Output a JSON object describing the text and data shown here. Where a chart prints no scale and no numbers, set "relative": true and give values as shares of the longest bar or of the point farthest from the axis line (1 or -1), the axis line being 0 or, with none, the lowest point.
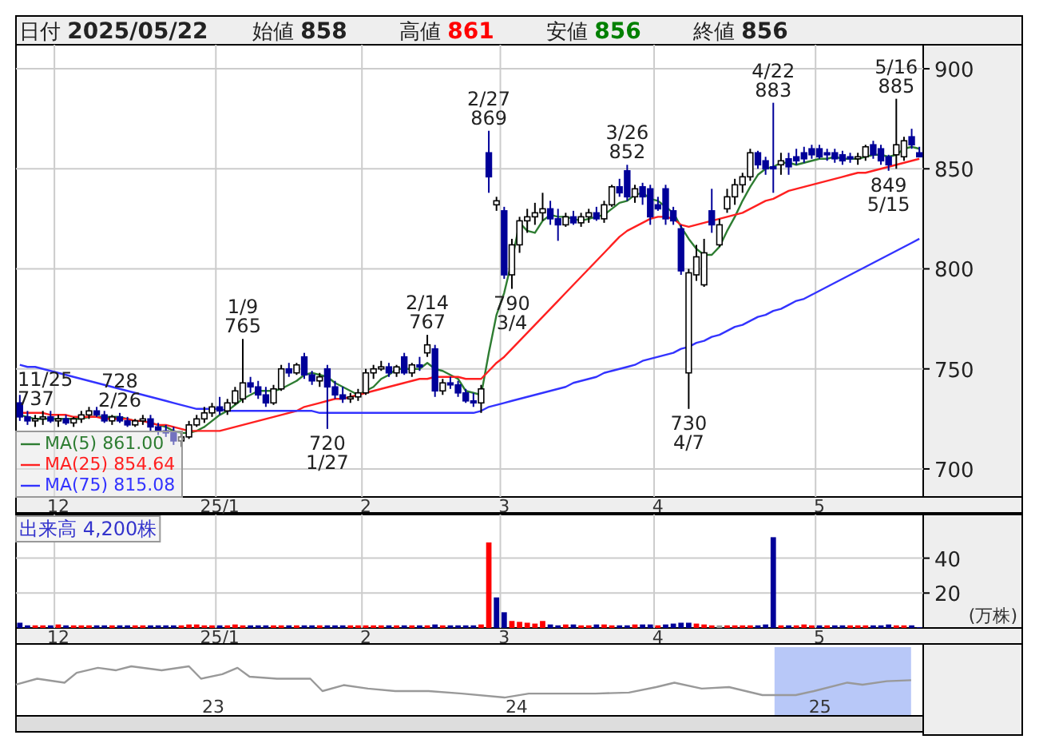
{
  "chart_data": [
    {
      "type": "other",
      "annotations": [
        "日付 2025/05/22",
        "始値 858",
        "高値 861",
        "安値 856",
        "終値 856"
      ],
      "colors": [
        "#222222",
        "#222222",
        "#ff0000",
        "#008000",
        "#222222"
      ]
    },
    {
      "type": "candlestick",
      "colors": [
        "#000099",
        "#000099",
        "#ffffff",
        "#ffffff",
        "#000099",
        "#ffffff",
        "#000099",
        "#ffffff",
        "#ffffff",
        "#ffffff",
        "#000099",
        "#000099",
        "#ffffff",
        "#000099",
        "#000099",
        "#ffffff",
        "#ffffff",
        "#000099",
        "#000099",
        "#000099",
        "#000099",
        "#ffffff",
        "#ffffff",
        "#ffffff",
        "#ffffff",
        "#ffffff",
        "#000099",
        "#ffffff",
        "#ffffff",
        "#ffffff",
        "#000099",
        "#000099",
        "#000099",
        "#ffffff",
        "#ffffff",
        "#000099",
        "#ffffff",
        "#000099",
        "#000099",
        "#ffffff",
        "#000099",
        "#000099",
        "#000099",
        "#ffffff",
        "#ffffff",
        "#ffffff",
        "#ffffff",
        "#ffffff",
        "#000099",
        "#ffffff",
        "#000099",
        "#ffffff",
        "#000099",
        "#ffffff",
        "#000099",
        "#ffffff",
        "#000099",
        "#000099",
        "#000099",
        "#000099",
        "#ffffff",
        "#000099",
        "#ffffff",
        "#000099",
        "#ffffff",
        "#ffffff",
        "#ffffff",
        "#ffffff",
        "#ffffff",
        "#000099",
        "#000099",
        "#ffffff",
        "#000099",
        "#ffffff",
        "#ffffff",
        "#000099",
        "#ffffff",
        "#ffffff",
        "#000099",
        "#000099",
        "#ffffff",
        "#000099",
        "#000099",
        "#000099",
        "#000099",
        "#000099",
        "#000099",
        "#ffffff",
        "#ffffff",
        "#ffffff",
        "#000099",
        "#ffffff",
        "#ffffff",
        "#ffffff",
        "#ffffff",
        "#ffffff",
        "#000099",
        "#000099",
        "#000099",
        "#ffffff",
        "#000099",
        "#000099",
        "#000099",
        "#000099",
        "#000099",
        "#000099",
        "#000099",
        "#000099",
        "#000099",
        "#ffffff",
        "#ffffff",
        "#000099",
        "#000099",
        "#000099",
        "#ffffff",
        "#ffffff",
        "#000099",
        "#000099"
      ],
      "ylim": [
        686,
        912
      ],
      "yticks": [
        700,
        750,
        800,
        850,
        900
      ],
      "grid": true,
      "legend": "bottom left",
      "categories": [
        null,
        null,
        null,
        null,
        null,
        "12",
        null,
        null,
        null,
        null,
        null,
        null,
        null,
        null,
        null,
        null,
        null,
        null,
        null,
        null,
        null,
        null,
        null,
        null,
        null,
        null,
        "25/1",
        null,
        null,
        null,
        null,
        null,
        null,
        null,
        null,
        null,
        null,
        null,
        null,
        null,
        null,
        null,
        null,
        null,
        null,
        "2",
        null,
        null,
        null,
        null,
        null,
        null,
        null,
        null,
        null,
        null,
        null,
        null,
        null,
        null,
        null,
        null,
        null,
        "3",
        null,
        null,
        null,
        null,
        null,
        null,
        null,
        null,
        null,
        null,
        null,
        null,
        null,
        null,
        null,
        null,
        null,
        null,
        null,
        "4",
        null,
        null,
        null,
        null,
        null,
        null,
        null,
        null,
        null,
        null,
        null,
        null,
        null,
        null,
        null,
        null,
        null,
        null,
        null,
        null,
        "5",
        null,
        null,
        null,
        null,
        null,
        null,
        null,
        null,
        null,
        null,
        null,
        null,
        null
      ],
      "ohlc": [
        [
          733,
          737,
          724,
          726
        ],
        [
          726,
          729,
          722,
          724
        ],
        [
          724,
          727,
          721,
          725
        ],
        [
          725,
          729,
          722,
          726
        ],
        [
          726,
          729,
          723,
          724
        ],
        [
          724,
          727,
          721,
          725
        ],
        [
          725,
          727,
          722,
          723
        ],
        [
          723,
          726,
          721,
          725
        ],
        [
          725,
          729,
          723,
          727
        ],
        [
          727,
          731,
          725,
          729
        ],
        [
          729,
          731,
          726,
          727
        ],
        [
          727,
          729,
          723,
          724
        ],
        [
          724,
          727,
          722,
          726
        ],
        [
          726,
          728,
          723,
          724
        ],
        [
          724,
          726,
          721,
          722
        ],
        [
          722,
          725,
          721,
          724
        ],
        [
          724,
          727,
          722,
          725
        ],
        [
          725,
          727,
          719,
          721
        ],
        [
          721,
          723,
          717,
          719
        ],
        [
          719,
          722,
          716,
          718
        ],
        [
          718,
          721,
          712,
          714
        ],
        [
          714,
          718,
          711,
          716
        ],
        [
          716,
          724,
          715,
          722
        ],
        [
          722,
          727,
          721,
          725
        ],
        [
          725,
          731,
          723,
          728
        ],
        [
          728,
          733,
          726,
          731
        ],
        [
          731,
          736,
          727,
          729
        ],
        [
          729,
          735,
          727,
          733
        ],
        [
          733,
          741,
          732,
          739
        ],
        [
          735,
          765,
          733,
          743
        ],
        [
          743,
          746,
          738,
          741
        ],
        [
          741,
          744,
          735,
          737
        ],
        [
          737,
          741,
          731,
          733
        ],
        [
          733,
          742,
          732,
          740
        ],
        [
          740,
          752,
          739,
          750
        ],
        [
          750,
          753,
          746,
          748
        ],
        [
          748,
          753,
          747,
          752
        ],
        [
          756,
          758,
          745,
          747
        ],
        [
          747,
          749,
          742,
          744
        ],
        [
          744,
          748,
          741,
          746
        ],
        [
          750,
          752,
          720,
          741
        ],
        [
          741,
          744,
          735,
          737
        ],
        [
          737,
          741,
          733,
          735
        ],
        [
          735,
          738,
          733,
          736
        ],
        [
          736,
          740,
          734,
          738
        ],
        [
          738,
          750,
          737,
          748
        ],
        [
          748,
          752,
          745,
          750
        ],
        [
          750,
          754,
          749,
          751
        ],
        [
          751,
          753,
          746,
          748
        ],
        [
          748,
          752,
          746,
          751
        ],
        [
          756,
          758,
          747,
          748
        ],
        [
          748,
          753,
          746,
          752
        ],
        [
          752,
          756,
          749,
          751
        ],
        [
          758,
          767,
          756,
          762
        ],
        [
          760,
          762,
          736,
          739
        ],
        [
          739,
          745,
          737,
          743
        ],
        [
          743,
          746,
          740,
          742
        ],
        [
          742,
          744,
          736,
          738
        ],
        [
          738,
          740,
          733,
          734
        ],
        [
          734,
          738,
          731,
          733
        ],
        [
          733,
          742,
          728,
          740
        ],
        [
          858,
          869,
          838,
          846
        ],
        [
          832,
          836,
          829,
          834
        ],
        [
          829,
          831,
          795,
          797
        ],
        [
          797,
          815,
          790,
          812
        ],
        [
          812,
          826,
          808,
          824
        ],
        [
          824,
          830,
          818,
          826
        ],
        [
          826,
          833,
          822,
          828
        ],
        [
          828,
          838,
          824,
          830
        ],
        [
          830,
          834,
          822,
          825
        ],
        [
          825,
          830,
          814,
          822
        ],
        [
          822,
          828,
          821,
          826
        ],
        [
          826,
          829,
          822,
          823
        ],
        [
          823,
          828,
          821,
          826
        ],
        [
          826,
          830,
          823,
          828
        ],
        [
          828,
          831,
          824,
          825
        ],
        [
          825,
          834,
          823,
          832
        ],
        [
          832,
          842,
          831,
          841
        ],
        [
          841,
          845,
          836,
          838
        ],
        [
          849,
          852,
          834,
          836
        ],
        [
          836,
          842,
          833,
          840
        ],
        [
          841,
          843,
          832,
          836
        ],
        [
          840,
          842,
          822,
          826
        ],
        [
          832,
          836,
          829,
          830
        ],
        [
          840,
          842,
          822,
          825
        ],
        [
          829,
          831,
          822,
          824
        ],
        [
          820,
          822,
          797,
          799
        ],
        [
          748,
          800,
          730,
          798
        ],
        [
          797,
          812,
          794,
          806
        ],
        [
          792,
          815,
          791,
          808
        ],
        [
          829,
          840,
          818,
          822
        ],
        [
          812,
          825,
          811,
          822
        ],
        [
          830,
          840,
          828,
          836
        ],
        [
          836,
          845,
          832,
          842
        ],
        [
          842,
          848,
          838,
          846
        ],
        [
          846,
          860,
          844,
          858
        ],
        [
          858,
          859,
          850,
          852
        ],
        [
          854,
          856,
          847,
          850
        ],
        [
          851,
          883,
          838,
          850
        ],
        [
          852,
          858,
          847,
          854
        ],
        [
          855,
          858,
          847,
          851
        ],
        [
          856,
          860,
          852,
          854
        ],
        [
          858,
          861,
          853,
          855
        ],
        [
          860,
          862,
          855,
          857
        ],
        [
          860,
          862,
          855,
          856
        ],
        [
          858,
          860,
          854,
          857
        ],
        [
          858,
          860,
          853,
          855
        ],
        [
          857,
          859,
          852,
          854
        ],
        [
          856,
          858,
          853,
          855
        ],
        [
          855,
          858,
          852,
          856
        ],
        [
          856,
          862,
          854,
          861
        ],
        [
          862,
          864,
          855,
          857
        ],
        [
          860,
          862,
          852,
          854
        ],
        [
          856,
          857,
          849,
          852
        ],
        [
          857,
          885,
          850,
          862
        ],
        [
          856,
          866,
          854,
          864
        ],
        [
          866,
          870,
          860,
          862
        ],
        [
          858,
          861,
          856,
          856
        ]
      ],
      "series": [
        {
          "type": "line",
          "name": "MA(5) 861.00",
          "color": "#2e7d32",
          "values": [
            727,
            726,
            725,
            725,
            725,
            725,
            725,
            725,
            725,
            726,
            726,
            726,
            726,
            726,
            725,
            724,
            724,
            723,
            722,
            721,
            719,
            718,
            718,
            719,
            721,
            724,
            727,
            729,
            732,
            735,
            737,
            739,
            739,
            739,
            740,
            742,
            744,
            747,
            748,
            747,
            746,
            743,
            741,
            739,
            737,
            739,
            741,
            745,
            747,
            750,
            750,
            750,
            750,
            753,
            750,
            749,
            747,
            745,
            739,
            738,
            737,
            758,
            777,
            788,
            804,
            823,
            819,
            818,
            824,
            827,
            826,
            826,
            825,
            824,
            825,
            826,
            827,
            830,
            833,
            834,
            837,
            838,
            835,
            834,
            831,
            828,
            821,
            815,
            810,
            807,
            807,
            811,
            819,
            826,
            834,
            841,
            847,
            850,
            851,
            853,
            853,
            852,
            853,
            854,
            855,
            855,
            856,
            855,
            855,
            855,
            856,
            857,
            857,
            856,
            857,
            860,
            861,
            860
          ]
        },
        {
          "type": "line",
          "name": "MA(25) 854.64",
          "color": "#ff2020",
          "values": [
            728,
            728,
            728,
            728,
            727,
            727,
            727,
            726,
            726,
            726,
            726,
            725,
            725,
            725,
            725,
            724,
            724,
            723,
            722,
            722,
            721,
            720,
            719,
            719,
            719,
            719,
            719,
            720,
            721,
            722,
            723,
            724,
            725,
            726,
            727,
            728,
            729,
            731,
            732,
            733,
            734,
            735,
            735,
            736,
            737,
            738,
            739,
            740,
            741,
            742,
            743,
            744,
            745,
            745,
            746,
            746,
            746,
            746,
            745,
            745,
            745,
            749,
            753,
            756,
            760,
            764,
            768,
            772,
            776,
            780,
            784,
            788,
            792,
            796,
            800,
            804,
            808,
            812,
            816,
            819,
            821,
            823,
            825,
            826,
            826,
            825,
            822,
            821,
            822,
            823,
            824,
            825,
            826,
            827,
            828,
            830,
            832,
            834,
            835,
            837,
            839,
            840,
            841,
            842,
            843,
            844,
            845,
            846,
            847,
            848,
            848,
            849,
            850,
            851,
            852,
            853,
            854,
            855
          ]
        },
        {
          "type": "line",
          "name": "MA(75) 815.08",
          "color": "#3333ff",
          "values": [
            752,
            751,
            751,
            750,
            749,
            748,
            747,
            746,
            745,
            744,
            743,
            742,
            741,
            740,
            739,
            738,
            737,
            736,
            735,
            734,
            733,
            732,
            731,
            730,
            730,
            730,
            730,
            729,
            729,
            729,
            729,
            729,
            729,
            729,
            729,
            729,
            729,
            729,
            729,
            728,
            728,
            728,
            728,
            728,
            728,
            728,
            728,
            728,
            728,
            728,
            728,
            728,
            728,
            728,
            728,
            728,
            728,
            728,
            728,
            728,
            729,
            731,
            732,
            733,
            734,
            735,
            736,
            737,
            738,
            739,
            740,
            741,
            743,
            744,
            745,
            746,
            748,
            749,
            750,
            751,
            752,
            754,
            755,
            756,
            757,
            758,
            760,
            761,
            763,
            764,
            766,
            767,
            769,
            771,
            772,
            774,
            776,
            777,
            779,
            780,
            782,
            784,
            785,
            787,
            789,
            791,
            793,
            795,
            797,
            799,
            801,
            803,
            805,
            807,
            809,
            811,
            813,
            815
          ]
        }
      ],
      "annotations": [
        "11/25\n737",
        {
          "text": "1/9\n765",
          "y": 765
        },
        {
          "text": "720\n1/27",
          "y": 720
        },
        {
          "text": "2/14\n767",
          "y": 767
        },
        {
          "text": "728\n2/26",
          "y": 728
        },
        {
          "text": "2/27\n869",
          "y": 869
        },
        {
          "text": "790\n3/4",
          "y": 790
        },
        {
          "text": "3/26\n852",
          "y": 852
        },
        {
          "text": "730\n4/7",
          "y": 730
        },
        {
          "text": "4/22\n883",
          "y": 883
        },
        {
          "text": "849\n5/15",
          "y": 849
        },
        {
          "text": "5/16\n885",
          "y": 885
        }
      ]
    },
    {
      "type": "bar",
      "ylim": [
        0,
        65
      ],
      "yticks": [
        20,
        40
      ],
      "grid": true,
      "ylabel": "(万株)",
      "annotations": [
        "出来高 4,200株"
      ],
      "categories": [
        null,
        null,
        null,
        null,
        null,
        "12",
        null,
        null,
        null,
        null,
        null,
        null,
        null,
        null,
        null,
        null,
        null,
        null,
        null,
        null,
        null,
        null,
        null,
        null,
        null,
        null,
        "25/1",
        null,
        null,
        null,
        null,
        null,
        null,
        null,
        null,
        null,
        null,
        null,
        null,
        null,
        null,
        null,
        null,
        null,
        null,
        "2",
        null,
        null,
        null,
        null,
        null,
        null,
        null,
        null,
        null,
        null,
        null,
        null,
        null,
        null,
        null,
        null,
        null,
        "3",
        null,
        null,
        null,
        null,
        null,
        null,
        null,
        null,
        null,
        null,
        null,
        null,
        null,
        null,
        null,
        null,
        null,
        null,
        null,
        "4",
        null,
        null,
        null,
        null,
        null,
        null,
        null,
        null,
        null,
        null,
        null,
        null,
        null,
        null,
        null,
        null,
        null,
        null,
        null,
        null,
        "5",
        null,
        null,
        null,
        null,
        null,
        null,
        null,
        null,
        null,
        null,
        null,
        null,
        null
      ],
      "values": [
        3,
        1.5,
        1.5,
        1.5,
        1.5,
        2,
        1.5,
        1.5,
        1.5,
        1.5,
        1.5,
        1.5,
        1.5,
        1.5,
        1.5,
        1.5,
        1.5,
        1.5,
        1.5,
        1.5,
        1.5,
        1.5,
        2,
        2,
        1.5,
        1.5,
        1.5,
        1.5,
        2,
        1.5,
        1.5,
        1.5,
        1.5,
        1.5,
        1.5,
        1.5,
        1.5,
        1.5,
        1.5,
        1.5,
        1.5,
        1.5,
        1.5,
        1.5,
        1.5,
        1.5,
        1.5,
        1.5,
        1.5,
        1.5,
        1.5,
        1.5,
        1.5,
        1.5,
        2,
        1.5,
        1.5,
        1.5,
        1.5,
        1.5,
        2,
        49,
        17.5,
        9,
        4,
        3.5,
        3,
        2.5,
        4,
        2,
        1.5,
        2,
        2,
        1.5,
        1.5,
        2,
        2,
        1.5,
        1.5,
        1.5,
        2,
        2,
        2,
        1.5,
        2,
        2.5,
        3,
        3,
        2.5,
        2,
        1.5,
        1.5,
        1.5,
        1.5,
        1.5,
        1.5,
        1.5,
        2,
        52,
        1.5,
        1.5,
        1.5,
        2,
        1.5,
        1.5,
        1.5,
        1.5,
        1.5,
        1.5,
        1.5,
        1.5,
        1.5,
        1.5,
        2,
        1.5,
        1.5,
        1.5,
        0.42
      ],
      "colors": [
        "#000099",
        "#000099",
        "#ff0000",
        "#ff0000",
        "#000099",
        "#ff0000",
        "#000099",
        "#ff0000",
        "#ff0000",
        "#ff0000",
        "#000099",
        "#000099",
        "#ff0000",
        "#000099",
        "#000099",
        "#ff0000",
        "#ff0000",
        "#000099",
        "#000099",
        "#000099",
        "#000099",
        "#ff0000",
        "#ff0000",
        "#ff0000",
        "#ff0000",
        "#ff0000",
        "#000099",
        "#ff0000",
        "#ff0000",
        "#ff0000",
        "#000099",
        "#000099",
        "#000099",
        "#ff0000",
        "#ff0000",
        "#000099",
        "#ff0000",
        "#000099",
        "#000099",
        "#ff0000",
        "#000099",
        "#000099",
        "#000099",
        "#ff0000",
        "#ff0000",
        "#ff0000",
        "#ff0000",
        "#ff0000",
        "#000099",
        "#ff0000",
        "#000099",
        "#ff0000",
        "#000099",
        "#ff0000",
        "#000099",
        "#ff0000",
        "#000099",
        "#000099",
        "#000099",
        "#000099",
        "#ff0000",
        "#ff0000",
        "#000099",
        "#000099",
        "#ff0000",
        "#ff0000",
        "#ff0000",
        "#ff0000",
        "#ff0000",
        "#000099",
        "#000099",
        "#ff0000",
        "#000099",
        "#ff0000",
        "#ff0000",
        "#000099",
        "#ff0000",
        "#ff0000",
        "#000099",
        "#000099",
        "#ff0000",
        "#000099",
        "#000099",
        "#ff0000",
        "#000099",
        "#000099",
        "#000099",
        "#000099",
        "#ff0000",
        "#ff0000",
        "#ff0000",
        "#999999",
        "#ff0000",
        "#ff0000",
        "#ff0000",
        "#ff0000",
        "#000099",
        "#000099",
        "#000099",
        "#ff0000",
        "#000099",
        "#ff0000",
        "#ff0000",
        "#ff0000",
        "#000099",
        "#ff0000",
        "#000099",
        "#000099",
        "#ff0000",
        "#ff0000",
        "#ff0000",
        "#000099",
        "#000099",
        "#000099",
        "#ff0000",
        "#ff0000",
        "#000099",
        "#000099"
      ]
    },
    {
      "type": "line",
      "relative": true,
      "color": "#999999",
      "xlim": [
        22.35,
        25.34
      ],
      "xticks": [
        23,
        24,
        25
      ],
      "x": [
        22.35,
        22.42,
        22.51,
        22.55,
        22.62,
        22.68,
        22.73,
        22.83,
        22.92,
        22.96,
        23.03,
        23.08,
        23.12,
        23.21,
        23.32,
        23.36,
        23.43,
        23.51,
        23.6,
        23.71,
        23.82,
        23.96,
        24.04,
        24.15,
        24.26,
        24.37,
        24.46,
        24.52,
        24.61,
        24.7,
        24.81,
        24.92,
        24.98,
        25.09,
        25.14,
        25.22,
        25.3
      ],
      "values": [
        0.63,
        0.75,
        0.67,
        0.87,
        0.97,
        0.92,
        1,
        0.92,
        1,
        0.75,
        0.84,
        0.97,
        0.79,
        0.75,
        0.75,
        0.5,
        0.62,
        0.55,
        0.5,
        0.5,
        0.45,
        0.37,
        0.45,
        0.45,
        0.45,
        0.47,
        0.58,
        0.67,
        0.55,
        0.58,
        0.42,
        0.42,
        0.5,
        0.67,
        0.63,
        0.7,
        0.72
      ],
      "bands": [
        {
          "axis": "x",
          "from": 24.85,
          "to": 25.3,
          "color": "#b8c8f8"
        }
      ]
    }
  ]
}
